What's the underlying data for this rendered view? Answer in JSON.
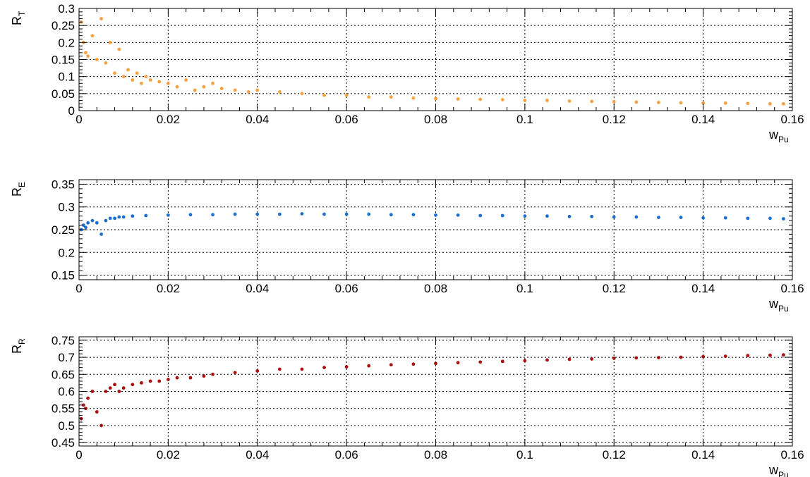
{
  "chart_data": [
    {
      "type": "scatter",
      "ylabel": "R",
      "ylabel_sub": "T",
      "xlabel": "w",
      "xlabel_sub": "Pu",
      "xlim": [
        0,
        0.16
      ],
      "ylim": [
        0,
        0.3
      ],
      "xticks": [
        0,
        0.02,
        0.04,
        0.06,
        0.08,
        0.1,
        0.12,
        0.14,
        0.16
      ],
      "xtick_labels": [
        "0",
        "0.02",
        "0.04",
        "0.06",
        "0.08",
        "0.1",
        "0.12",
        "0.14",
        "0.16"
      ],
      "yticks": [
        0,
        0.05,
        0.1,
        0.15,
        0.2,
        0.25,
        0.3
      ],
      "ytick_labels": [
        "0",
        "0.05",
        "0.1",
        "0.15",
        "0.2",
        "0.25",
        "0.3"
      ],
      "grid": true,
      "color": "#f9a040",
      "series": [
        {
          "x": [
            0.0005,
            0.001,
            0.0015,
            0.002,
            0.003,
            0.004,
            0.005,
            0.006,
            0.007,
            0.008,
            0.009,
            0.01,
            0.011,
            0.012,
            0.013,
            0.014,
            0.015,
            0.016,
            0.018,
            0.02,
            0.022,
            0.024,
            0.026,
            0.028,
            0.03,
            0.032,
            0.035,
            0.038,
            0.04,
            0.045,
            0.05,
            0.055,
            0.06,
            0.065,
            0.07,
            0.075,
            0.08,
            0.085,
            0.09,
            0.095,
            0.1,
            0.105,
            0.11,
            0.115,
            0.12,
            0.125,
            0.13,
            0.135,
            0.14,
            0.145,
            0.15,
            0.155,
            0.158
          ],
          "y": [
            0.26,
            0.2,
            0.17,
            0.16,
            0.22,
            0.15,
            0.27,
            0.14,
            0.2,
            0.11,
            0.18,
            0.1,
            0.12,
            0.09,
            0.11,
            0.08,
            0.1,
            0.09,
            0.085,
            0.08,
            0.07,
            0.09,
            0.06,
            0.07,
            0.08,
            0.065,
            0.06,
            0.055,
            0.06,
            0.055,
            0.05,
            0.045,
            0.045,
            0.04,
            0.04,
            0.037,
            0.035,
            0.034,
            0.033,
            0.032,
            0.03,
            0.03,
            0.028,
            0.027,
            0.026,
            0.025,
            0.024,
            0.023,
            0.022,
            0.022,
            0.021,
            0.02,
            0.02
          ]
        }
      ]
    },
    {
      "type": "scatter",
      "ylabel": "R",
      "ylabel_sub": "E",
      "xlabel": "w",
      "xlabel_sub": "Pu",
      "xlim": [
        0,
        0.16
      ],
      "ylim": [
        0.14,
        0.36
      ],
      "xticks": [
        0,
        0.02,
        0.04,
        0.06,
        0.08,
        0.1,
        0.12,
        0.14,
        0.16
      ],
      "xtick_labels": [
        "0",
        "0.02",
        "0.04",
        "0.06",
        "0.08",
        "0.1",
        "0.12",
        "0.14",
        "0.16"
      ],
      "yticks": [
        0.15,
        0.2,
        0.25,
        0.3,
        0.35
      ],
      "ytick_labels": [
        "0.15",
        "0.2",
        "0.25",
        "0.3",
        "0.35"
      ],
      "grid": true,
      "color": "#1a6fd0",
      "series": [
        {
          "x": [
            0.0005,
            0.001,
            0.0015,
            0.002,
            0.003,
            0.004,
            0.005,
            0.006,
            0.007,
            0.008,
            0.009,
            0.01,
            0.012,
            0.015,
            0.02,
            0.025,
            0.03,
            0.035,
            0.04,
            0.045,
            0.05,
            0.055,
            0.06,
            0.065,
            0.07,
            0.075,
            0.08,
            0.085,
            0.09,
            0.095,
            0.1,
            0.105,
            0.11,
            0.115,
            0.12,
            0.125,
            0.13,
            0.135,
            0.14,
            0.145,
            0.15,
            0.155,
            0.158
          ],
          "y": [
            0.25,
            0.26,
            0.255,
            0.265,
            0.27,
            0.265,
            0.24,
            0.27,
            0.275,
            0.275,
            0.278,
            0.278,
            0.28,
            0.281,
            0.282,
            0.283,
            0.283,
            0.284,
            0.284,
            0.284,
            0.285,
            0.284,
            0.284,
            0.284,
            0.283,
            0.283,
            0.282,
            0.282,
            0.281,
            0.281,
            0.28,
            0.28,
            0.279,
            0.279,
            0.278,
            0.278,
            0.277,
            0.277,
            0.276,
            0.276,
            0.275,
            0.275,
            0.274
          ]
        }
      ]
    },
    {
      "type": "scatter",
      "ylabel": "R",
      "ylabel_sub": "R",
      "xlabel": "w",
      "xlabel_sub": "Pu",
      "xlim": [
        0,
        0.16
      ],
      "ylim": [
        0.44,
        0.76
      ],
      "xticks": [
        0,
        0.02,
        0.04,
        0.06,
        0.08,
        0.1,
        0.12,
        0.14,
        0.16
      ],
      "xtick_labels": [
        "0",
        "0.02",
        "0.04",
        "0.06",
        "0.08",
        "0.1",
        "0.12",
        "0.14",
        "0.16"
      ],
      "yticks": [
        0.45,
        0.5,
        0.55,
        0.6,
        0.65,
        0.7,
        0.75
      ],
      "ytick_labels": [
        "0.45",
        "0.5",
        "0.55",
        "0.6",
        "0.65",
        "0.7",
        "0.75"
      ],
      "grid": true,
      "color": "#aa1010",
      "series": [
        {
          "x": [
            0.0005,
            0.001,
            0.0015,
            0.002,
            0.003,
            0.004,
            0.005,
            0.006,
            0.007,
            0.008,
            0.009,
            0.01,
            0.012,
            0.014,
            0.016,
            0.018,
            0.02,
            0.022,
            0.025,
            0.028,
            0.03,
            0.035,
            0.04,
            0.045,
            0.05,
            0.055,
            0.06,
            0.065,
            0.07,
            0.075,
            0.08,
            0.085,
            0.09,
            0.095,
            0.1,
            0.105,
            0.11,
            0.115,
            0.12,
            0.125,
            0.13,
            0.135,
            0.14,
            0.145,
            0.15,
            0.155,
            0.158
          ],
          "y": [
            0.52,
            0.56,
            0.55,
            0.58,
            0.6,
            0.54,
            0.5,
            0.6,
            0.61,
            0.62,
            0.6,
            0.61,
            0.62,
            0.625,
            0.63,
            0.63,
            0.635,
            0.64,
            0.64,
            0.645,
            0.65,
            0.655,
            0.66,
            0.665,
            0.665,
            0.67,
            0.672,
            0.675,
            0.678,
            0.68,
            0.682,
            0.684,
            0.686,
            0.688,
            0.69,
            0.692,
            0.694,
            0.695,
            0.697,
            0.698,
            0.699,
            0.7,
            0.702,
            0.703,
            0.705,
            0.706,
            0.707
          ]
        }
      ]
    }
  ]
}
